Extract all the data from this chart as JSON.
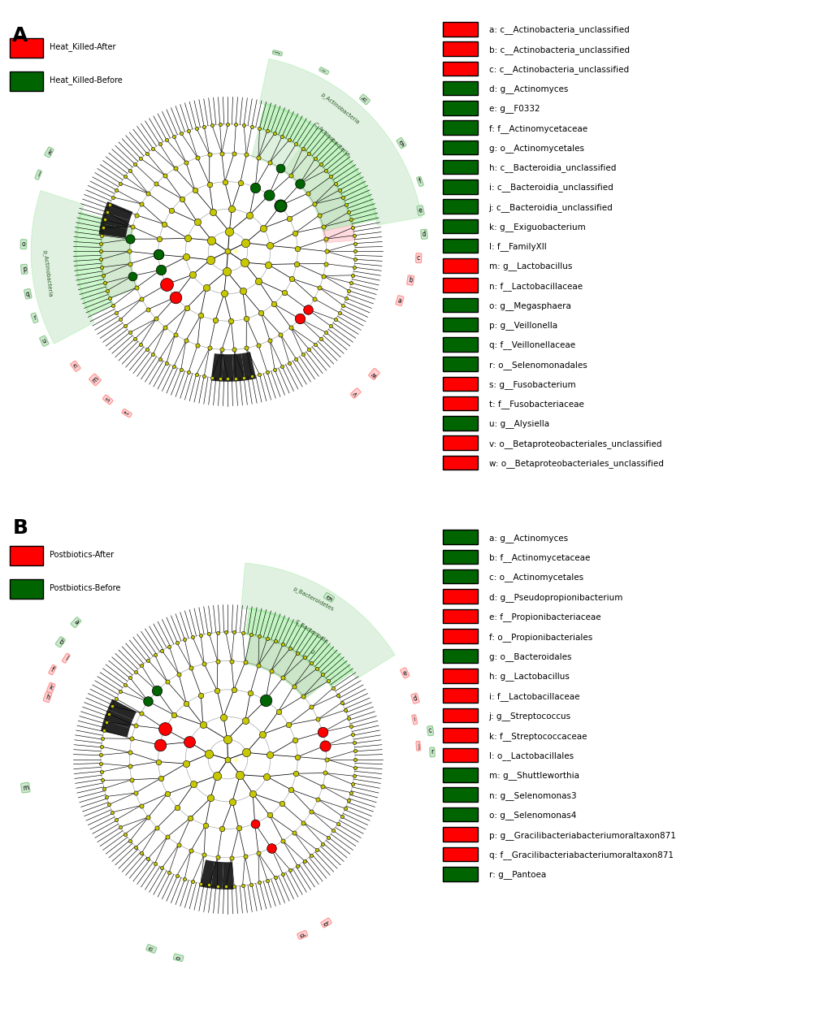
{
  "panel_A": {
    "legend_after": "Heat_Killed-After",
    "legend_before": "Heat_Killed-Before",
    "color_after": "#FF0000",
    "color_before": "#006400",
    "legend_items": [
      {
        "label": "a: c__Actinobacteria_unclassified",
        "color": "#FF0000"
      },
      {
        "label": "b: c__Actinobacteria_unclassified",
        "color": "#FF0000"
      },
      {
        "label": "c: c__Actinobacteria_unclassified",
        "color": "#FF0000"
      },
      {
        "label": "d: g__Actinomyces",
        "color": "#006400"
      },
      {
        "label": "e: g__F0332",
        "color": "#006400"
      },
      {
        "label": "f: f__Actinomycetaceae",
        "color": "#006400"
      },
      {
        "label": "g: o__Actinomycetales",
        "color": "#006400"
      },
      {
        "label": "h: c__Bacteroidia_unclassified",
        "color": "#006400"
      },
      {
        "label": "i: c__Bacteroidia_unclassified",
        "color": "#006400"
      },
      {
        "label": "j: c__Bacteroidia_unclassified",
        "color": "#006400"
      },
      {
        "label": "k: g__Exiguobacterium",
        "color": "#006400"
      },
      {
        "label": "l: f__FamilyXII",
        "color": "#006400"
      },
      {
        "label": "m: g__Lactobacillus",
        "color": "#FF0000"
      },
      {
        "label": "n: f__Lactobacillaceae",
        "color": "#FF0000"
      },
      {
        "label": "o: g__Megasphaera",
        "color": "#006400"
      },
      {
        "label": "p: g__Veillonella",
        "color": "#006400"
      },
      {
        "label": "q: f__Veillonellaceae",
        "color": "#006400"
      },
      {
        "label": "r: o__Selenomonadales",
        "color": "#006400"
      },
      {
        "label": "s: g__Fusobacterium",
        "color": "#FF0000"
      },
      {
        "label": "t: f__Fusobacteriaceae",
        "color": "#FF0000"
      },
      {
        "label": "u: g__Alysiella",
        "color": "#006400"
      },
      {
        "label": "v: o__Betaproteobacteriales_unclassified",
        "color": "#FF0000"
      },
      {
        "label": "w: o__Betaproteobacteriales_unclassified",
        "color": "#FF0000"
      }
    ]
  },
  "panel_B": {
    "legend_after": "Postbiotics-After",
    "legend_before": "Postbiotics-Before",
    "color_after": "#FF0000",
    "color_before": "#006400",
    "legend_items": [
      {
        "label": "a: g__Actinomyces",
        "color": "#006400"
      },
      {
        "label": "b: f__Actinomycetaceae",
        "color": "#006400"
      },
      {
        "label": "c: o__Actinomycetales",
        "color": "#006400"
      },
      {
        "label": "d: g__Pseudopropionibacterium",
        "color": "#FF0000"
      },
      {
        "label": "e: f__Propionibacteriaceae",
        "color": "#FF0000"
      },
      {
        "label": "f: o__Propionibacteriales",
        "color": "#FF0000"
      },
      {
        "label": "g: o__Bacteroidales",
        "color": "#006400"
      },
      {
        "label": "h: g__Lactobacillus",
        "color": "#FF0000"
      },
      {
        "label": "i: f__Lactobacillaceae",
        "color": "#FF0000"
      },
      {
        "label": "j: g__Streptococcus",
        "color": "#FF0000"
      },
      {
        "label": "k: f__Streptococcaceae",
        "color": "#FF0000"
      },
      {
        "label": "l: o__Lactobacillales",
        "color": "#FF0000"
      },
      {
        "label": "m: g__Shuttleworthia",
        "color": "#006400"
      },
      {
        "label": "n: g__Selenomonas3",
        "color": "#006400"
      },
      {
        "label": "o: g__Selenomonas4",
        "color": "#006400"
      },
      {
        "label": "p: g__Gracilibacteriabacteriumoraltaxon871",
        "color": "#FF0000"
      },
      {
        "label": "q: f__Gracilibacteriabacteriumoraltaxon871",
        "color": "#FF0000"
      },
      {
        "label": "r: g__Pantoea",
        "color": "#006400"
      }
    ]
  }
}
